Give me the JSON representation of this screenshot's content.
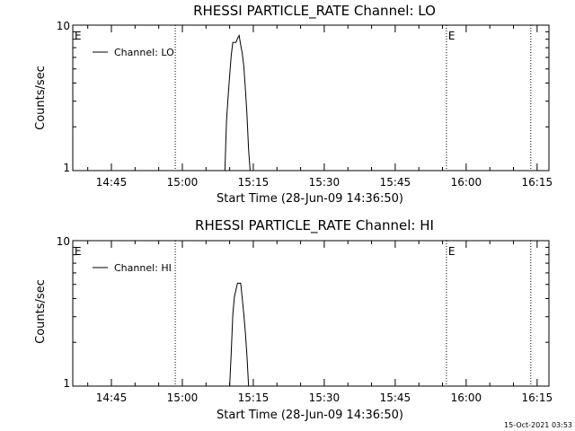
{
  "chart_data": [
    {
      "type": "line",
      "title": "RHESSI PARTICLE_RATE Channel: LO",
      "xlabel": "Start Time (28-Jun-09 14:36:50)",
      "ylabel": "Counts/sec",
      "y_scale": "log",
      "ylim": [
        1,
        10
      ],
      "y_ticks": [
        "1",
        "10"
      ],
      "xlim": [
        "14:36:50",
        "16:17:30"
      ],
      "x_ticks": [
        "14:45",
        "15:00",
        "15:15",
        "15:30",
        "15:45",
        "16:00",
        "16:15"
      ],
      "legend": {
        "placement": "top-left",
        "entries": [
          "Channel: LO"
        ]
      },
      "grid": false,
      "vlines": [
        "14:58:30",
        "15:55:50",
        "16:13:40"
      ],
      "vline_markers": [
        {
          "time": "14:36:50",
          "label": "E"
        },
        {
          "time": "15:55:50",
          "label": "E"
        }
      ],
      "series": [
        {
          "name": "Channel: LO",
          "x": [
            "15:09:00",
            "15:09:20",
            "15:09:40",
            "15:10:00",
            "15:10:20",
            "15:10:40",
            "15:11:00",
            "15:11:20",
            "15:11:40",
            "15:12:00",
            "15:12:20",
            "15:12:40",
            "15:13:00",
            "15:13:20",
            "15:13:40",
            "15:14:00",
            "15:14:20"
          ],
          "y": [
            1,
            2.2,
            3.2,
            4.5,
            6.2,
            7.6,
            7.6,
            7.6,
            8.1,
            8.5,
            7.3,
            6.4,
            5.2,
            3.6,
            2.4,
            1.4,
            1
          ]
        }
      ]
    },
    {
      "type": "line",
      "title": "RHESSI PARTICLE_RATE Channel: HI",
      "xlabel": "Start Time (28-Jun-09 14:36:50)",
      "ylabel": "Counts/sec",
      "y_scale": "log",
      "ylim": [
        1,
        10
      ],
      "y_ticks": [
        "1",
        "10"
      ],
      "xlim": [
        "14:36:50",
        "16:17:30"
      ],
      "x_ticks": [
        "14:45",
        "15:00",
        "15:15",
        "15:30",
        "15:45",
        "16:00",
        "16:15"
      ],
      "legend": {
        "placement": "top-left",
        "entries": [
          "Channel: HI"
        ]
      },
      "grid": false,
      "vlines": [
        "14:58:30",
        "15:55:50",
        "16:13:40"
      ],
      "vline_markers": [
        {
          "time": "14:36:50",
          "label": "E"
        },
        {
          "time": "15:55:50",
          "label": "E"
        }
      ],
      "series": [
        {
          "name": "Channel: HI",
          "x": [
            "15:10:00",
            "15:10:20",
            "15:10:40",
            "15:11:00",
            "15:11:20",
            "15:11:40",
            "15:12:00",
            "15:12:20",
            "15:12:40",
            "15:13:00",
            "15:13:20",
            "15:13:40",
            "15:14:00"
          ],
          "y": [
            1,
            1.7,
            3.1,
            4.1,
            4.6,
            5.1,
            5.1,
            5.1,
            4.0,
            3.1,
            2.3,
            1.6,
            1
          ]
        }
      ]
    }
  ],
  "footer": {
    "timestamp": "15-Oct-2021 03:53"
  }
}
